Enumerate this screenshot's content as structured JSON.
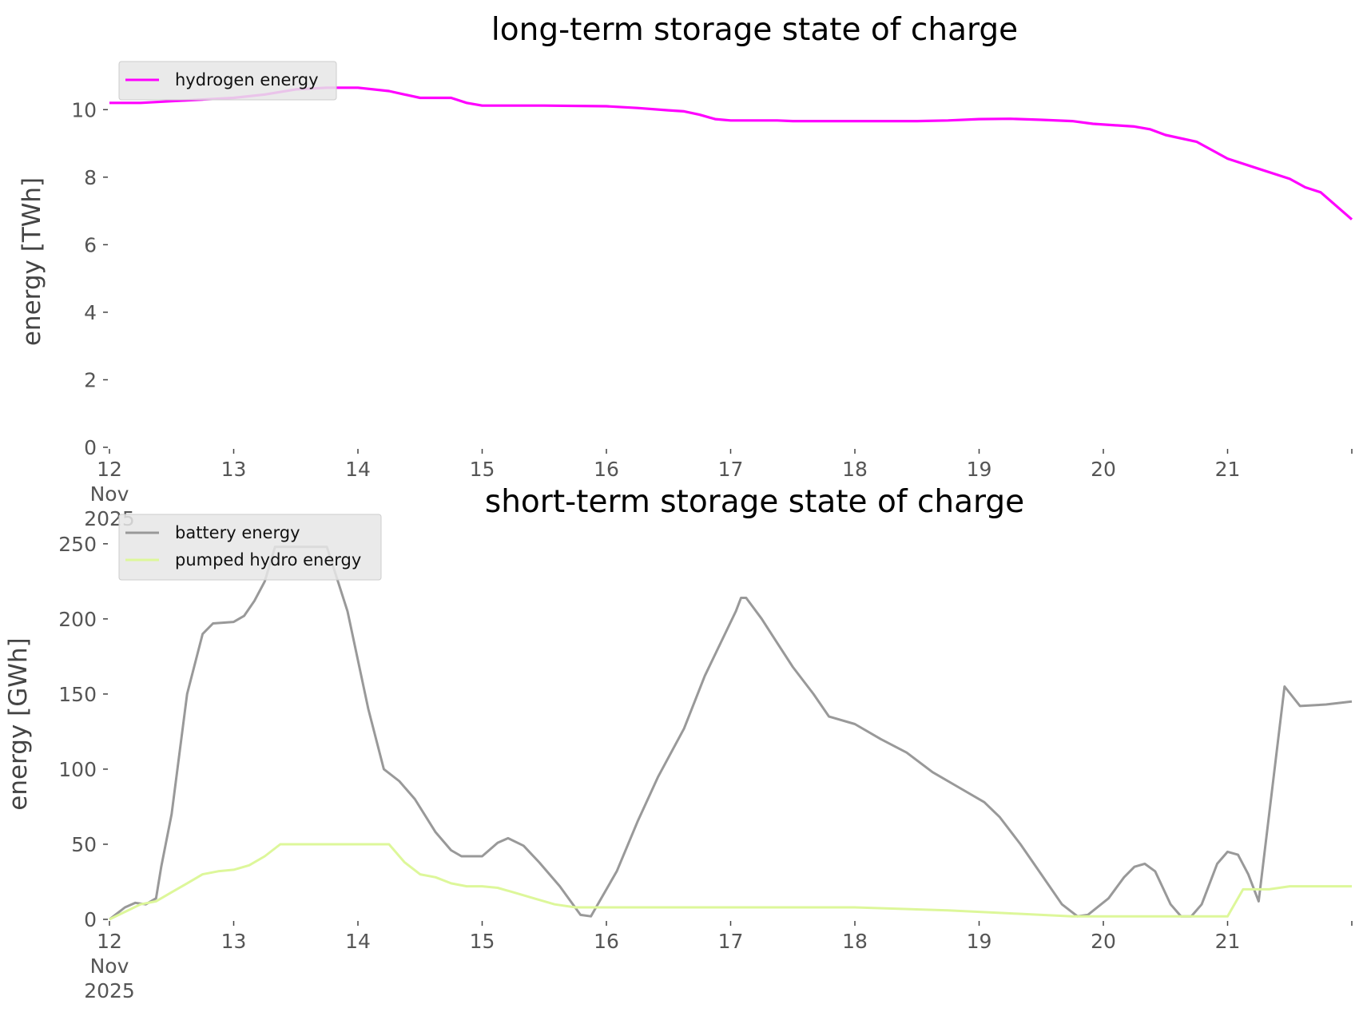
{
  "chart_data": [
    {
      "type": "line",
      "title": "long-term storage state of charge",
      "xlabel": "",
      "ylabel": "energy [TWh]",
      "ylim": [
        0,
        11
      ],
      "xlim": [
        "2025-11-12T00:00",
        "2025-11-22T00:00"
      ],
      "yticks": [
        0,
        2,
        4,
        6,
        8,
        10
      ],
      "xticks": [
        {
          "date": "2025-11-12",
          "label": "12"
        },
        {
          "date": "2025-11-13",
          "label": "13"
        },
        {
          "date": "2025-11-14",
          "label": "14"
        },
        {
          "date": "2025-11-15",
          "label": "15"
        },
        {
          "date": "2025-11-16",
          "label": "16"
        },
        {
          "date": "2025-11-17",
          "label": "17"
        },
        {
          "date": "2025-11-18",
          "label": "18"
        },
        {
          "date": "2025-11-19",
          "label": "19"
        },
        {
          "date": "2025-11-20",
          "label": "20"
        },
        {
          "date": "2025-11-21",
          "label": "21"
        },
        {
          "date": "2025-11-22",
          "label": ""
        }
      ],
      "x_first_sublabels": [
        "Nov",
        "2025"
      ],
      "grid": false,
      "legend": "upper-left",
      "series": [
        {
          "name": "hydrogen energy",
          "color": "#ff00ff",
          "points": [
            [
              "2025-11-12T00:00",
              10.2
            ],
            [
              "2025-11-12T06:00",
              10.2
            ],
            [
              "2025-11-12T12:00",
              10.25
            ],
            [
              "2025-11-12T18:00",
              10.3
            ],
            [
              "2025-11-13T00:00",
              10.35
            ],
            [
              "2025-11-13T06:00",
              10.45
            ],
            [
              "2025-11-13T12:00",
              10.6
            ],
            [
              "2025-11-13T18:00",
              10.65
            ],
            [
              "2025-11-14T00:00",
              10.65
            ],
            [
              "2025-11-14T06:00",
              10.55
            ],
            [
              "2025-11-14T09:00",
              10.45
            ],
            [
              "2025-11-14T12:00",
              10.35
            ],
            [
              "2025-11-14T18:00",
              10.35
            ],
            [
              "2025-11-14T21:00",
              10.2
            ],
            [
              "2025-11-15T00:00",
              10.12
            ],
            [
              "2025-11-15T12:00",
              10.12
            ],
            [
              "2025-11-16T00:00",
              10.1
            ],
            [
              "2025-11-16T06:00",
              10.05
            ],
            [
              "2025-11-16T12:00",
              9.98
            ],
            [
              "2025-11-16T15:00",
              9.95
            ],
            [
              "2025-11-16T18:00",
              9.85
            ],
            [
              "2025-11-16T21:00",
              9.72
            ],
            [
              "2025-11-17T00:00",
              9.68
            ],
            [
              "2025-11-17T09:00",
              9.68
            ],
            [
              "2025-11-17T12:00",
              9.66
            ],
            [
              "2025-11-18T00:00",
              9.66
            ],
            [
              "2025-11-18T12:00",
              9.66
            ],
            [
              "2025-11-18T18:00",
              9.68
            ],
            [
              "2025-11-19T00:00",
              9.72
            ],
            [
              "2025-11-19T06:00",
              9.73
            ],
            [
              "2025-11-19T12:00",
              9.7
            ],
            [
              "2025-11-19T18:00",
              9.66
            ],
            [
              "2025-11-19T22:00",
              9.58
            ],
            [
              "2025-11-20T06:00",
              9.5
            ],
            [
              "2025-11-20T09:00",
              9.42
            ],
            [
              "2025-11-20T12:00",
              9.25
            ],
            [
              "2025-11-20T18:00",
              9.05
            ],
            [
              "2025-11-21T00:00",
              8.55
            ],
            [
              "2025-11-21T06:00",
              8.25
            ],
            [
              "2025-11-21T12:00",
              7.95
            ],
            [
              "2025-11-21T15:00",
              7.7
            ],
            [
              "2025-11-21T18:00",
              7.55
            ],
            [
              "2025-11-21T21:00",
              7.15
            ],
            [
              "2025-11-22T00:00",
              6.75
            ]
          ]
        }
      ]
    },
    {
      "type": "line",
      "title": "short-term storage state of charge",
      "xlabel": "",
      "ylabel": "energy [GWh]",
      "ylim": [
        0,
        260
      ],
      "xlim": [
        "2025-11-12T00:00",
        "2025-11-22T00:00"
      ],
      "yticks": [
        0,
        50,
        100,
        150,
        200,
        250
      ],
      "xticks": [
        {
          "date": "2025-11-12",
          "label": "12"
        },
        {
          "date": "2025-11-13",
          "label": "13"
        },
        {
          "date": "2025-11-14",
          "label": "14"
        },
        {
          "date": "2025-11-15",
          "label": "15"
        },
        {
          "date": "2025-11-16",
          "label": "16"
        },
        {
          "date": "2025-11-17",
          "label": "17"
        },
        {
          "date": "2025-11-18",
          "label": "18"
        },
        {
          "date": "2025-11-19",
          "label": "19"
        },
        {
          "date": "2025-11-20",
          "label": "20"
        },
        {
          "date": "2025-11-21",
          "label": "21"
        },
        {
          "date": "2025-11-22",
          "label": ""
        }
      ],
      "x_first_sublabels": [
        "Nov",
        "2025"
      ],
      "grid": false,
      "legend": "upper-left",
      "series": [
        {
          "name": "battery energy",
          "color": "#999999",
          "points": [
            [
              "2025-11-12T00:00",
              0
            ],
            [
              "2025-11-12T03:00",
              8
            ],
            [
              "2025-11-12T05:00",
              11
            ],
            [
              "2025-11-12T07:00",
              10
            ],
            [
              "2025-11-12T09:00",
              14
            ],
            [
              "2025-11-12T10:00",
              35
            ],
            [
              "2025-11-12T12:00",
              70
            ],
            [
              "2025-11-12T15:00",
              150
            ],
            [
              "2025-11-12T18:00",
              190
            ],
            [
              "2025-11-12T20:00",
              197
            ],
            [
              "2025-11-13T00:00",
              198
            ],
            [
              "2025-11-13T02:00",
              202
            ],
            [
              "2025-11-13T04:00",
              212
            ],
            [
              "2025-11-13T06:00",
              225
            ],
            [
              "2025-11-13T08:00",
              248
            ],
            [
              "2025-11-13T18:00",
              248
            ],
            [
              "2025-11-13T22:00",
              205
            ],
            [
              "2025-11-14T02:00",
              140
            ],
            [
              "2025-11-14T05:00",
              100
            ],
            [
              "2025-11-14T08:00",
              92
            ],
            [
              "2025-11-14T11:00",
              80
            ],
            [
              "2025-11-14T15:00",
              58
            ],
            [
              "2025-11-14T18:00",
              46
            ],
            [
              "2025-11-14T20:00",
              42
            ],
            [
              "2025-11-15T00:00",
              42
            ],
            [
              "2025-11-15T03:00",
              51
            ],
            [
              "2025-11-15T05:00",
              54
            ],
            [
              "2025-11-15T08:00",
              49
            ],
            [
              "2025-11-15T11:00",
              38
            ],
            [
              "2025-11-15T15:00",
              22
            ],
            [
              "2025-11-15T19:00",
              3
            ],
            [
              "2025-11-15T21:00",
              2
            ],
            [
              "2025-11-15T23:00",
              14
            ],
            [
              "2025-11-16T02:00",
              32
            ],
            [
              "2025-11-16T06:00",
              65
            ],
            [
              "2025-11-16T10:00",
              95
            ],
            [
              "2025-11-16T15:00",
              127
            ],
            [
              "2025-11-16T19:00",
              162
            ],
            [
              "2025-11-17T01:00",
              205
            ],
            [
              "2025-11-17T02:00",
              214
            ],
            [
              "2025-11-17T03:00",
              214
            ],
            [
              "2025-11-17T06:00",
              200
            ],
            [
              "2025-11-17T09:00",
              184
            ],
            [
              "2025-11-17T12:00",
              168
            ],
            [
              "2025-11-17T16:00",
              150
            ],
            [
              "2025-11-17T19:00",
              135
            ],
            [
              "2025-11-18T00:00",
              130
            ],
            [
              "2025-11-18T05:00",
              120
            ],
            [
              "2025-11-18T10:00",
              111
            ],
            [
              "2025-11-18T15:00",
              98
            ],
            [
              "2025-11-18T20:00",
              88
            ],
            [
              "2025-11-19T01:00",
              78
            ],
            [
              "2025-11-19T04:00",
              68
            ],
            [
              "2025-11-19T08:00",
              50
            ],
            [
              "2025-11-19T12:00",
              30
            ],
            [
              "2025-11-19T16:00",
              10
            ],
            [
              "2025-11-19T19:00",
              2
            ],
            [
              "2025-11-19T21:00",
              3
            ],
            [
              "2025-11-20T01:00",
              14
            ],
            [
              "2025-11-20T04:00",
              28
            ],
            [
              "2025-11-20T06:00",
              35
            ],
            [
              "2025-11-20T08:00",
              37
            ],
            [
              "2025-11-20T10:00",
              32
            ],
            [
              "2025-11-20T13:00",
              10
            ],
            [
              "2025-11-20T15:00",
              2
            ],
            [
              "2025-11-20T17:00",
              2
            ],
            [
              "2025-11-20T19:00",
              10
            ],
            [
              "2025-11-20T22:00",
              37
            ],
            [
              "2025-11-21T00:00",
              45
            ],
            [
              "2025-11-21T02:00",
              43
            ],
            [
              "2025-11-21T04:00",
              30
            ],
            [
              "2025-11-21T06:00",
              12
            ],
            [
              "2025-11-21T11:00",
              155
            ],
            [
              "2025-11-21T14:00",
              142
            ],
            [
              "2025-11-21T19:00",
              143
            ],
            [
              "2025-11-22T00:00",
              145
            ]
          ]
        },
        {
          "name": "pumped hydro energy",
          "color": "#ddf79a",
          "points": [
            [
              "2025-11-12T00:00",
              0
            ],
            [
              "2025-11-12T03:00",
              5
            ],
            [
              "2025-11-12T06:00",
              10
            ],
            [
              "2025-11-12T09:00",
              12
            ],
            [
              "2025-11-12T12:00",
              18
            ],
            [
              "2025-11-12T15:00",
              24
            ],
            [
              "2025-11-12T18:00",
              30
            ],
            [
              "2025-11-12T21:00",
              32
            ],
            [
              "2025-11-13T00:00",
              33
            ],
            [
              "2025-11-13T03:00",
              36
            ],
            [
              "2025-11-13T06:00",
              42
            ],
            [
              "2025-11-13T09:00",
              50
            ],
            [
              "2025-11-14T06:00",
              50
            ],
            [
              "2025-11-14T09:00",
              38
            ],
            [
              "2025-11-14T12:00",
              30
            ],
            [
              "2025-11-14T15:00",
              28
            ],
            [
              "2025-11-14T18:00",
              24
            ],
            [
              "2025-11-14T21:00",
              22
            ],
            [
              "2025-11-15T00:00",
              22
            ],
            [
              "2025-11-15T03:00",
              21
            ],
            [
              "2025-11-15T06:00",
              18
            ],
            [
              "2025-11-15T10:00",
              14
            ],
            [
              "2025-11-15T14:00",
              10
            ],
            [
              "2025-11-15T18:00",
              8
            ],
            [
              "2025-11-16T00:00",
              8
            ],
            [
              "2025-11-18T00:00",
              8
            ],
            [
              "2025-11-18T18:00",
              6
            ],
            [
              "2025-11-19T06:00",
              4
            ],
            [
              "2025-11-19T18:00",
              2
            ],
            [
              "2025-11-20T12:00",
              2
            ],
            [
              "2025-11-20T19:00",
              2
            ],
            [
              "2025-11-20T22:00",
              2
            ],
            [
              "2025-11-21T00:00",
              2
            ],
            [
              "2025-11-21T03:00",
              20
            ],
            [
              "2025-11-21T08:00",
              20
            ],
            [
              "2025-11-21T12:00",
              22
            ],
            [
              "2025-11-21T18:00",
              22
            ],
            [
              "2025-11-22T00:00",
              22
            ]
          ]
        }
      ]
    }
  ]
}
